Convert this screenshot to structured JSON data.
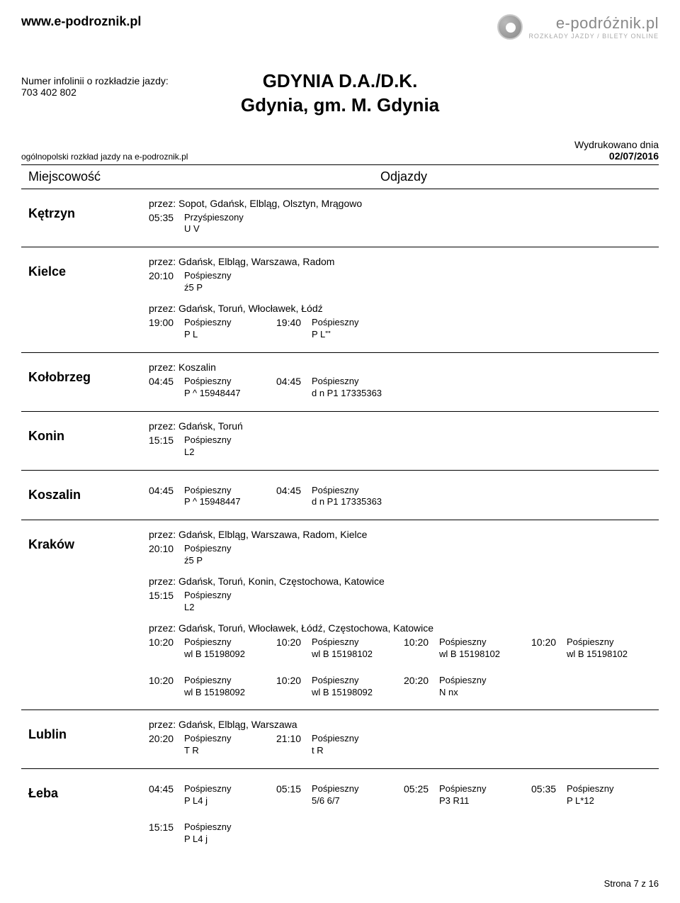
{
  "site_url": "www.e-podroznik.pl",
  "logo_text": "e-podróżnik.pl",
  "logo_sub": "ROZKŁADY JAZDY / BILETY ONLINE",
  "infoline_label": "Numer infolinii o rozkładzie jazdy:",
  "infoline_number": "703 402 802",
  "title_1": "GDYNIA D.A./D.K.",
  "title_2": "Gdynia, gm. M. Gdynia",
  "subheader_left": "ogólnopolski rozkład jazdy na e-podroznik.pl",
  "printed_label": "Wydrukowano dnia",
  "printed_date": "02/07/2016",
  "th_dest": "Miejscowość",
  "th_dep": "Odjazdy",
  "footer": "Strona 7 z 16",
  "type_przys": "Przyśpieszony",
  "type_posp": "Pośpieszny",
  "destinations": [
    {
      "name": "Kętrzyn",
      "sections": [
        {
          "via": "przez: Sopot, Gdańsk, Elbląg, Olsztyn, Mrągowo",
          "deps": [
            {
              "time": "05:35",
              "type": "Przyśpieszony",
              "code": "U  V"
            }
          ]
        }
      ]
    },
    {
      "name": "Kielce",
      "sections": [
        {
          "via": "przez: Gdańsk, Elbląg, Warszawa, Radom",
          "deps": [
            {
              "time": "20:10",
              "type": "Pośpieszny",
              "code": "ź5  P"
            }
          ]
        },
        {
          "via": "przez: Gdańsk, Toruń, Włocławek, Łódź",
          "deps": [
            {
              "time": "19:00",
              "type": "Pośpieszny",
              "code": "P  L"
            },
            {
              "time": "19:40",
              "type": "Pośpieszny",
              "code": "P  L'''"
            }
          ]
        }
      ]
    },
    {
      "name": "Kołobrzeg",
      "sections": [
        {
          "via": "przez: Koszalin",
          "deps": [
            {
              "time": "04:45",
              "type": "Pośpieszny",
              "code": "P  ^  15948447"
            },
            {
              "time": "04:45",
              "type": "Pośpieszny",
              "code": "d  n  P1  17335363"
            }
          ]
        }
      ]
    },
    {
      "name": "Konin",
      "sections": [
        {
          "via": "przez: Gdańsk, Toruń",
          "deps": [
            {
              "time": "15:15",
              "type": "Pośpieszny",
              "code": "L2"
            }
          ]
        }
      ]
    },
    {
      "name": "Koszalin",
      "sections": [
        {
          "via": "",
          "deps": [
            {
              "time": "04:45",
              "type": "Pośpieszny",
              "code": "P  ^  15948447"
            },
            {
              "time": "04:45",
              "type": "Pośpieszny",
              "code": "d  n  P1  17335363"
            }
          ]
        }
      ]
    },
    {
      "name": "Kraków",
      "sections": [
        {
          "via": "przez: Gdańsk, Elbląg, Warszawa, Radom, Kielce",
          "deps": [
            {
              "time": "20:10",
              "type": "Pośpieszny",
              "code": "ź5  P"
            }
          ]
        },
        {
          "via": "przez: Gdańsk, Toruń, Konin, Częstochowa, Katowice",
          "deps": [
            {
              "time": "15:15",
              "type": "Pośpieszny",
              "code": "L2"
            }
          ]
        },
        {
          "via": "przez: Gdańsk, Toruń, Włocławek, Łódź, Częstochowa, Katowice",
          "deps": [
            {
              "time": "10:20",
              "type": "Pośpieszny",
              "code": "wl  B  15198092"
            },
            {
              "time": "10:20",
              "type": "Pośpieszny",
              "code": "wl  B  15198102"
            },
            {
              "time": "10:20",
              "type": "Pośpieszny",
              "code": "wl  B  15198102"
            },
            {
              "time": "10:20",
              "type": "Pośpieszny",
              "code": "wl  B  15198102"
            }
          ]
        },
        {
          "via": "",
          "deps": [
            {
              "time": "10:20",
              "type": "Pośpieszny",
              "code": "wl  B  15198092"
            },
            {
              "time": "10:20",
              "type": "Pośpieszny",
              "code": "wl  B  15198092"
            },
            {
              "time": "20:20",
              "type": "Pośpieszny",
              "code": "N  nx"
            }
          ]
        }
      ]
    },
    {
      "name": "Lublin",
      "sections": [
        {
          "via": "przez: Gdańsk, Elbląg, Warszawa",
          "deps": [
            {
              "time": "20:20",
              "type": "Pośpieszny",
              "code": "T  R"
            },
            {
              "time": "21:10",
              "type": "Pośpieszny",
              "code": "t  R"
            }
          ]
        }
      ]
    },
    {
      "name": "Łeba",
      "sections": [
        {
          "via": "",
          "deps": [
            {
              "time": "04:45",
              "type": "Pośpieszny",
              "code": "P  L4  j"
            },
            {
              "time": "05:15",
              "type": "Pośpieszny",
              "code": "5/6  6/7"
            },
            {
              "time": "05:25",
              "type": "Pośpieszny",
              "code": "P3  R11"
            },
            {
              "time": "05:35",
              "type": "Pośpieszny",
              "code": "P  L*12"
            }
          ]
        },
        {
          "via": "",
          "deps": [
            {
              "time": "15:15",
              "type": "Pośpieszny",
              "code": "P  L4  j"
            }
          ]
        }
      ],
      "no_border": true
    }
  ]
}
